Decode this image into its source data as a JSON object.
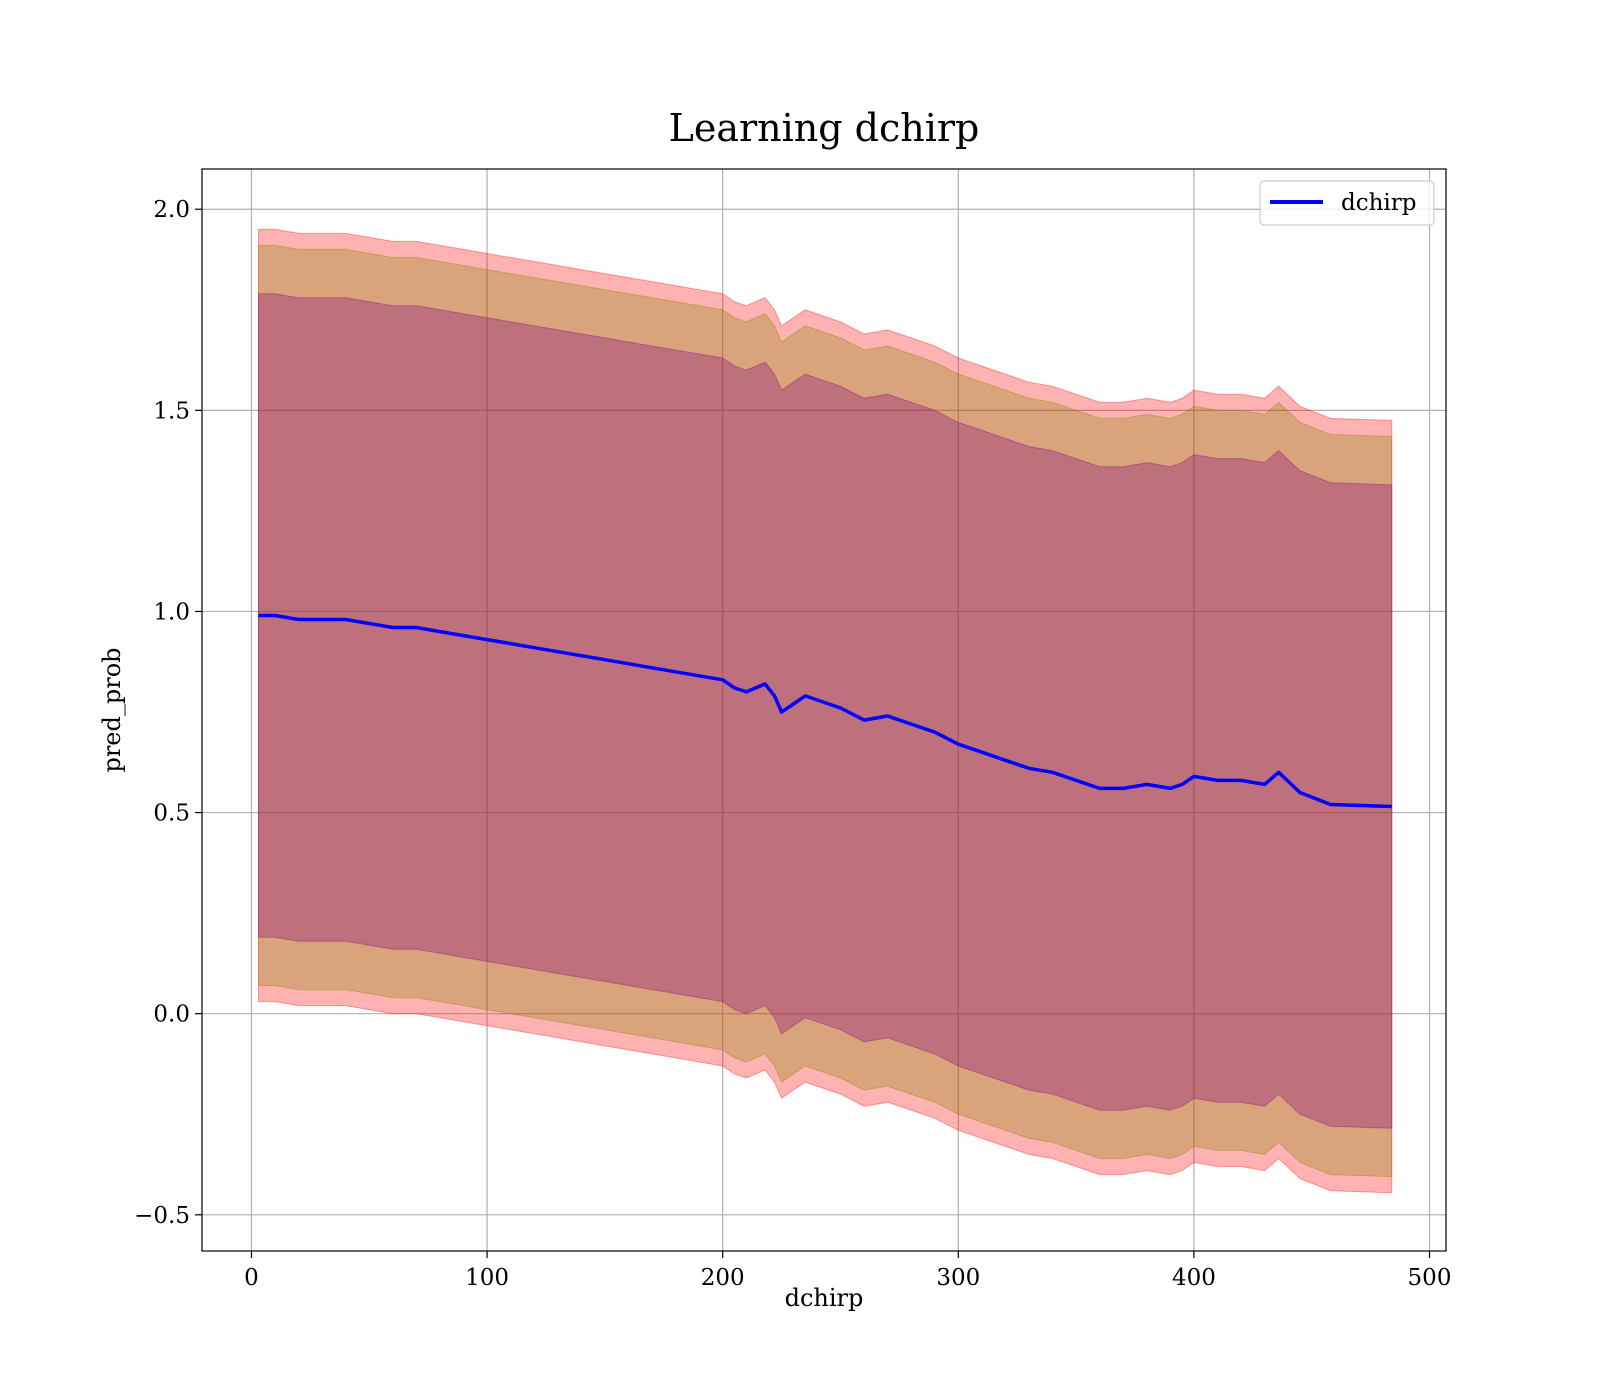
{
  "chart_data": {
    "type": "area",
    "title": "Learning dchirp",
    "xlabel": "dchirp",
    "ylabel": "pred_prob",
    "xlim": [
      -21,
      507
    ],
    "ylim": [
      -0.59,
      2.1
    ],
    "xticks": [
      0,
      100,
      200,
      300,
      400,
      500
    ],
    "yticks": [
      -0.5,
      0.0,
      0.5,
      1.0,
      1.5,
      2.0
    ],
    "xtick_labels": [
      "0",
      "100",
      "200",
      "300",
      "400",
      "500"
    ],
    "ytick_labels": [
      "−0.5",
      "0.0",
      "0.5",
      "1.0",
      "1.5",
      "2.0"
    ],
    "grid": true,
    "legend": {
      "position": "top-right",
      "entries": [
        "dchirp"
      ]
    },
    "x": [
      3,
      10,
      20,
      30,
      40,
      50,
      60,
      70,
      80,
      90,
      100,
      110,
      120,
      130,
      140,
      150,
      160,
      170,
      180,
      190,
      200,
      205,
      210,
      218,
      222,
      225,
      230,
      235,
      240,
      250,
      260,
      270,
      280,
      290,
      300,
      310,
      320,
      330,
      340,
      350,
      360,
      370,
      380,
      390,
      395,
      400,
      410,
      420,
      430,
      436,
      445,
      458,
      484
    ],
    "series": [
      {
        "name": "dchirp",
        "color": "#0000ff",
        "values": [
          0.99,
          0.99,
          0.98,
          0.98,
          0.98,
          0.97,
          0.96,
          0.96,
          0.95,
          0.94,
          0.93,
          0.92,
          0.91,
          0.9,
          0.89,
          0.88,
          0.87,
          0.86,
          0.85,
          0.84,
          0.83,
          0.81,
          0.8,
          0.82,
          0.79,
          0.75,
          0.77,
          0.79,
          0.78,
          0.76,
          0.73,
          0.74,
          0.72,
          0.7,
          0.67,
          0.65,
          0.63,
          0.61,
          0.6,
          0.58,
          0.56,
          0.56,
          0.57,
          0.56,
          0.57,
          0.59,
          0.58,
          0.58,
          0.57,
          0.6,
          0.55,
          0.52,
          0.515
        ]
      }
    ],
    "bands": [
      {
        "name": "outer",
        "color": "#ff0000",
        "opacity": 0.3,
        "halfwidth": 0.96
      },
      {
        "name": "middle",
        "color": "#808000",
        "opacity": 0.3,
        "halfwidth": 0.92
      },
      {
        "name": "inner",
        "color": "#800080",
        "opacity": 0.3,
        "halfwidth": 0.8
      }
    ]
  }
}
